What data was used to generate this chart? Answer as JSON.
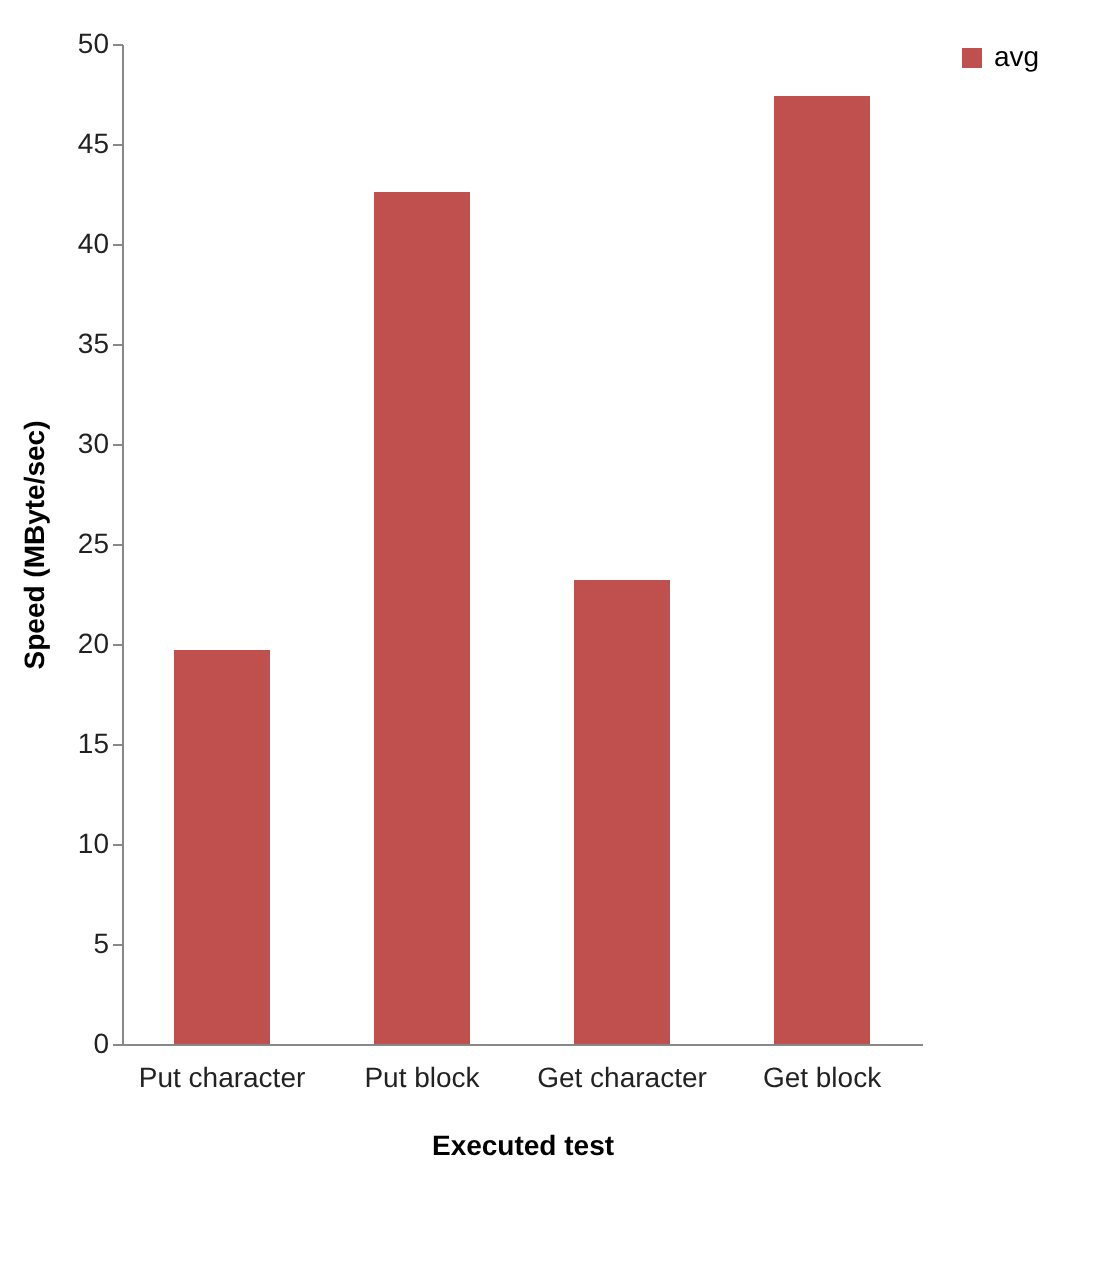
{
  "chart_data": {
    "type": "bar",
    "xlabel": "Executed test",
    "ylabel": "Speed (MByte/sec)",
    "categories": [
      "Put character",
      "Put block",
      "Get character",
      "Get block"
    ],
    "series": [
      {
        "name": "avg",
        "color": "#c0504d",
        "values": [
          19.7,
          42.6,
          23.2,
          47.4
        ]
      }
    ],
    "ylim": [
      0,
      50
    ],
    "yticks": [
      0,
      5,
      10,
      15,
      20,
      25,
      30,
      35,
      40,
      45,
      50
    ],
    "grid": false,
    "legend": "right"
  }
}
